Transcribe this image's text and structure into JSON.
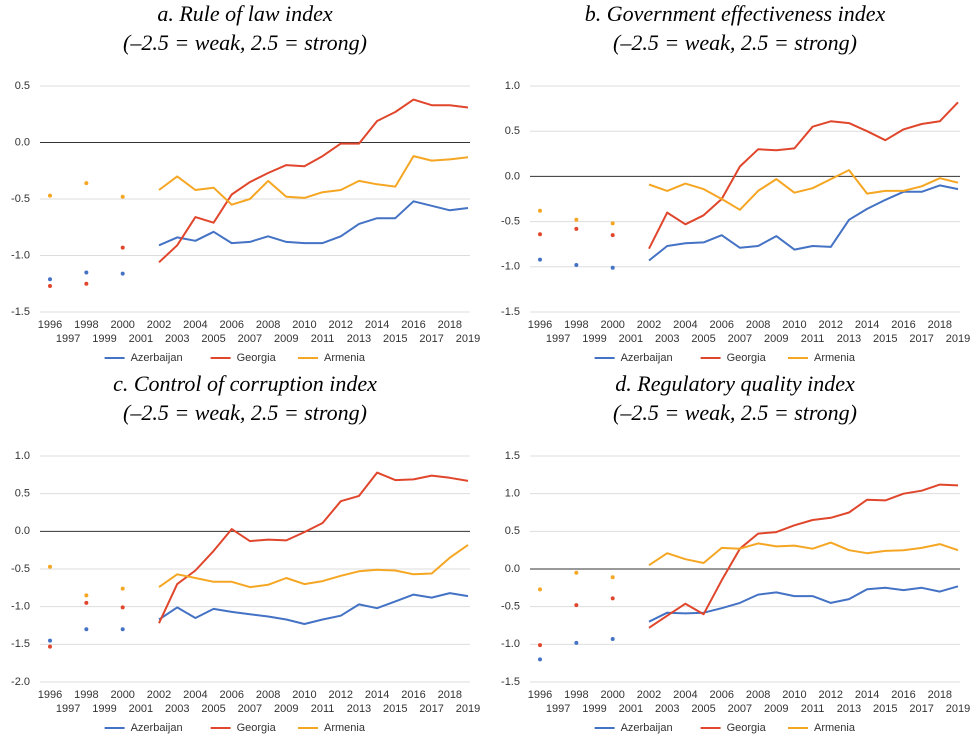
{
  "chart_data": [
    {
      "type": "line",
      "title": "a. Rule of law index",
      "subtitle": "(–2.5 = weak, 2.5 = strong)",
      "categories": [
        "1996",
        "1997",
        "1998",
        "1999",
        "2000",
        "2001",
        "2002",
        "2003",
        "2004",
        "2005",
        "2006",
        "2007",
        "2008",
        "2009",
        "2010",
        "2011",
        "2012",
        "2013",
        "2014",
        "2015",
        "2016",
        "2017",
        "2018",
        "2019"
      ],
      "ylim": [
        -1.5,
        0.5
      ],
      "yticks": [
        -1.5,
        {
          "value": -1,
          "label": "-1.0"
        },
        -0.5,
        {
          "value": 0,
          "label": "0.0"
        },
        0.5
      ],
      "grid": true,
      "legend": "bottom",
      "series": [
        {
          "name": "Azerbaijan",
          "color": "#4472c4",
          "values": [
            -1.21,
            null,
            -1.15,
            null,
            -1.16,
            null,
            -0.91,
            -0.84,
            -0.87,
            -0.79,
            -0.89,
            -0.88,
            -0.83,
            -0.88,
            -0.89,
            -0.89,
            -0.83,
            -0.72,
            -0.67,
            -0.67,
            -0.52,
            -0.56,
            -0.6,
            -0.58
          ]
        },
        {
          "name": "Georgia",
          "color": "#e0462c",
          "values": [
            -1.27,
            null,
            -1.25,
            null,
            -0.93,
            null,
            -1.06,
            -0.91,
            -0.66,
            -0.71,
            -0.46,
            -0.35,
            -0.27,
            -0.2,
            -0.21,
            -0.12,
            -0.01,
            -0.01,
            0.19,
            0.27,
            0.38,
            0.33,
            0.33,
            0.31
          ]
        },
        {
          "name": "Armenia",
          "color": "#f5a623",
          "values": [
            -0.47,
            null,
            -0.36,
            null,
            -0.48,
            null,
            -0.42,
            -0.3,
            -0.42,
            -0.4,
            -0.55,
            -0.5,
            -0.34,
            -0.48,
            -0.49,
            -0.44,
            -0.42,
            -0.34,
            -0.37,
            -0.39,
            -0.12,
            -0.16,
            -0.15,
            -0.13
          ]
        }
      ]
    },
    {
      "type": "line",
      "title": "b. Government effectiveness index",
      "subtitle": "(–2.5 = weak, 2.5 = strong)",
      "categories": [
        "1996",
        "1997",
        "1998",
        "1999",
        "2000",
        "2001",
        "2002",
        "2003",
        "2004",
        "2005",
        "2006",
        "2007",
        "2008",
        "2009",
        "2010",
        "2011",
        "2012",
        "2013",
        "2014",
        "2015",
        "2016",
        "2017",
        "2018",
        "2019"
      ],
      "ylim": [
        -1.5,
        1
      ],
      "yticks": [
        -1.5,
        {
          "value": -1,
          "label": "-1.0"
        },
        -0.5,
        {
          "value": 0,
          "label": "0.0"
        },
        0.5,
        {
          "value": 1,
          "label": "1.0"
        }
      ],
      "grid": true,
      "legend": "bottom",
      "series": [
        {
          "name": "Azerbaijan",
          "color": "#4472c4",
          "values": [
            -0.92,
            null,
            -0.98,
            null,
            -1.01,
            null,
            -0.93,
            -0.77,
            -0.74,
            -0.73,
            -0.65,
            -0.79,
            -0.77,
            -0.66,
            -0.81,
            -0.77,
            -0.78,
            -0.48,
            -0.36,
            -0.26,
            -0.17,
            -0.17,
            -0.1,
            -0.14
          ]
        },
        {
          "name": "Georgia",
          "color": "#e0462c",
          "values": [
            -0.64,
            null,
            -0.58,
            null,
            -0.65,
            null,
            -0.8,
            -0.4,
            -0.53,
            -0.43,
            -0.25,
            0.11,
            0.3,
            0.29,
            0.31,
            0.55,
            0.61,
            0.59,
            0.5,
            0.4,
            0.52,
            0.58,
            0.61,
            0.82
          ]
        },
        {
          "name": "Armenia",
          "color": "#f5a623",
          "values": [
            -0.38,
            null,
            -0.48,
            null,
            -0.52,
            null,
            -0.09,
            -0.16,
            -0.08,
            -0.14,
            -0.25,
            -0.37,
            -0.16,
            -0.03,
            -0.18,
            -0.13,
            -0.03,
            0.07,
            -0.19,
            -0.16,
            -0.16,
            -0.11,
            -0.02,
            -0.07
          ]
        }
      ]
    },
    {
      "type": "line",
      "title": "c. Control of corruption index",
      "subtitle": "(–2.5 = weak, 2.5 = strong)",
      "categories": [
        "1996",
        "1997",
        "1998",
        "1999",
        "2000",
        "2001",
        "2002",
        "2003",
        "2004",
        "2005",
        "2006",
        "2007",
        "2008",
        "2009",
        "2010",
        "2011",
        "2012",
        "2013",
        "2014",
        "2015",
        "2016",
        "2017",
        "2018",
        "2019"
      ],
      "ylim": [
        -2,
        1
      ],
      "yticks": [
        {
          "value": -2,
          "label": "-2.0"
        },
        -1.5,
        {
          "value": -1,
          "label": "-1.0"
        },
        -0.5,
        {
          "value": 0,
          "label": "0.0"
        },
        0.5,
        {
          "value": 1,
          "label": "1.0"
        }
      ],
      "grid": true,
      "legend": "bottom",
      "series": [
        {
          "name": "Azerbaijan",
          "color": "#4472c4",
          "values": [
            -1.45,
            null,
            -1.3,
            null,
            -1.3,
            null,
            -1.17,
            -1.01,
            -1.15,
            -1.03,
            -1.07,
            -1.1,
            -1.13,
            -1.17,
            -1.23,
            -1.17,
            -1.12,
            -0.97,
            -1.02,
            -0.93,
            -0.84,
            -0.88,
            -0.82,
            -0.86
          ]
        },
        {
          "name": "Georgia",
          "color": "#e0462c",
          "values": [
            -1.53,
            null,
            -0.95,
            null,
            -1.01,
            null,
            -1.22,
            -0.7,
            -0.52,
            -0.26,
            0.03,
            -0.13,
            -0.11,
            -0.12,
            -0.01,
            0.11,
            0.4,
            0.47,
            0.78,
            0.68,
            0.69,
            0.74,
            0.71,
            0.67
          ]
        },
        {
          "name": "Armenia",
          "color": "#f5a623",
          "values": [
            -0.47,
            null,
            -0.85,
            null,
            -0.76,
            null,
            -0.74,
            -0.57,
            -0.62,
            -0.67,
            -0.67,
            -0.74,
            -0.71,
            -0.62,
            -0.7,
            -0.66,
            -0.59,
            -0.53,
            -0.51,
            -0.52,
            -0.57,
            -0.56,
            -0.35,
            -0.18
          ]
        }
      ]
    },
    {
      "type": "line",
      "title": "d. Regulatory quality index",
      "subtitle": "(–2.5 = weak, 2.5 = strong)",
      "categories": [
        "1996",
        "1997",
        "1998",
        "1999",
        "2000",
        "2001",
        "2002",
        "2003",
        "2004",
        "2005",
        "2006",
        "2007",
        "2008",
        "2009",
        "2010",
        "2011",
        "2012",
        "2013",
        "2014",
        "2015",
        "2016",
        "2017",
        "2018",
        "2019"
      ],
      "ylim": [
        -1.5,
        1.5
      ],
      "yticks": [
        -1.5,
        {
          "value": -1,
          "label": "-1.0"
        },
        -0.5,
        {
          "value": 0,
          "label": "0.0"
        },
        0.5,
        {
          "value": 1,
          "label": "1.0"
        },
        1.5
      ],
      "grid": true,
      "legend": "bottom",
      "series": [
        {
          "name": "Azerbaijan",
          "color": "#4472c4",
          "values": [
            -1.2,
            null,
            -0.98,
            null,
            -0.93,
            null,
            -0.7,
            -0.58,
            -0.59,
            -0.58,
            -0.52,
            -0.45,
            -0.34,
            -0.31,
            -0.36,
            -0.36,
            -0.45,
            -0.4,
            -0.27,
            -0.25,
            -0.28,
            -0.25,
            -0.3,
            -0.23
          ]
        },
        {
          "name": "Georgia",
          "color": "#e0462c",
          "values": [
            -1.01,
            null,
            -0.48,
            null,
            -0.39,
            null,
            -0.78,
            -0.62,
            -0.46,
            -0.6,
            -0.15,
            0.27,
            0.47,
            0.49,
            0.58,
            0.65,
            0.68,
            0.75,
            0.92,
            0.91,
            1.0,
            1.04,
            1.12,
            1.11
          ]
        },
        {
          "name": "Armenia",
          "color": "#f5a623",
          "values": [
            -0.27,
            null,
            -0.05,
            null,
            -0.11,
            null,
            0.05,
            0.21,
            0.13,
            0.08,
            0.28,
            0.27,
            0.34,
            0.3,
            0.31,
            0.27,
            0.35,
            0.25,
            0.21,
            0.24,
            0.25,
            0.28,
            0.33,
            0.25
          ]
        }
      ]
    }
  ]
}
